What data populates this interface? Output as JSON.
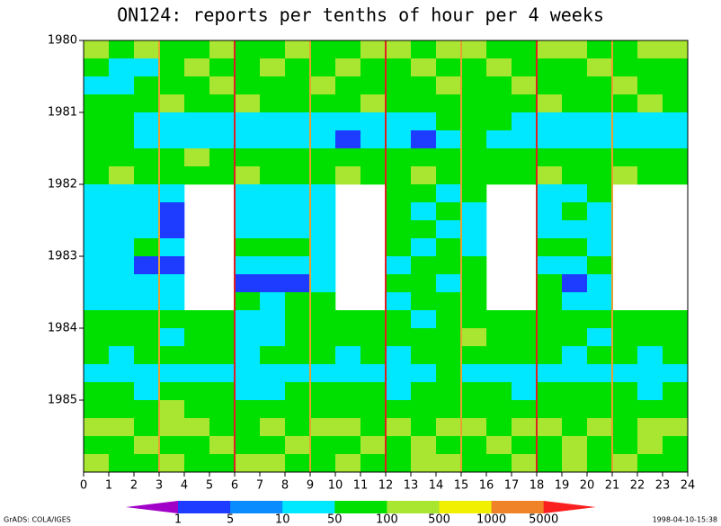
{
  "chart_data": {
    "type": "heatmap",
    "title": "ON124: reports per tenths of hour per 4 weeks",
    "footer_left": "GrADS: COLA/IGES",
    "footer_right": "1998-04-10-15:38",
    "xlim": [
      0,
      24
    ],
    "xticks": [
      0,
      1,
      2,
      3,
      4,
      5,
      6,
      7,
      8,
      9,
      10,
      11,
      12,
      13,
      14,
      15,
      16,
      17,
      18,
      19,
      20,
      21,
      22,
      23,
      24
    ],
    "ylim": [
      1980,
      1986
    ],
    "yticks": [
      1980,
      1981,
      1982,
      1983,
      1984,
      1985
    ],
    "x": [
      0,
      1,
      2,
      3,
      4,
      5,
      6,
      7,
      8,
      9,
      10,
      11,
      12,
      13,
      14,
      15,
      16,
      17,
      18,
      19,
      20,
      21,
      22,
      23
    ],
    "y": [
      1980,
      1980.25,
      1980.5,
      1980.75,
      1981,
      1981.25,
      1981.5,
      1981.75,
      1982,
      1982.25,
      1982.5,
      1982.75,
      1983,
      1983.25,
      1983.5,
      1983.75,
      1984,
      1984.25,
      1984.5,
      1984.75,
      1985,
      1985.25,
      1985.5,
      1985.75
    ],
    "z": [
      [
        300,
        75,
        300,
        75,
        75,
        300,
        75,
        75,
        300,
        75,
        75,
        300,
        300,
        75,
        300,
        300,
        75,
        75,
        300,
        300,
        75,
        75,
        300,
        300
      ],
      [
        75,
        30,
        30,
        75,
        300,
        75,
        75,
        300,
        75,
        75,
        300,
        75,
        75,
        300,
        75,
        75,
        300,
        75,
        75,
        75,
        300,
        75,
        75,
        75
      ],
      [
        30,
        30,
        75,
        75,
        75,
        300,
        75,
        75,
        75,
        300,
        75,
        75,
        75,
        75,
        300,
        75,
        75,
        300,
        75,
        75,
        75,
        300,
        75,
        75
      ],
      [
        75,
        75,
        75,
        300,
        75,
        75,
        300,
        75,
        75,
        75,
        75,
        300,
        75,
        75,
        75,
        75,
        75,
        75,
        300,
        75,
        75,
        75,
        300,
        75
      ],
      [
        75,
        75,
        30,
        30,
        30,
        30,
        30,
        30,
        30,
        30,
        30,
        30,
        30,
        30,
        75,
        75,
        75,
        30,
        30,
        30,
        30,
        30,
        30,
        30
      ],
      [
        75,
        75,
        30,
        30,
        30,
        30,
        30,
        30,
        30,
        30,
        3,
        30,
        30,
        3,
        30,
        75,
        30,
        30,
        30,
        30,
        30,
        30,
        30,
        30
      ],
      [
        75,
        75,
        75,
        75,
        300,
        75,
        75,
        75,
        75,
        75,
        75,
        75,
        75,
        75,
        75,
        75,
        75,
        75,
        75,
        75,
        75,
        75,
        75,
        75
      ],
      [
        75,
        300,
        75,
        75,
        75,
        75,
        300,
        75,
        75,
        75,
        300,
        75,
        75,
        300,
        75,
        75,
        75,
        75,
        300,
        75,
        75,
        300,
        75,
        75
      ],
      [
        30,
        30,
        30,
        30,
        null,
        null,
        30,
        30,
        30,
        30,
        null,
        null,
        75,
        75,
        30,
        75,
        null,
        null,
        30,
        30,
        75,
        null,
        null,
        null
      ],
      [
        30,
        30,
        30,
        3,
        null,
        null,
        30,
        30,
        30,
        30,
        null,
        null,
        75,
        30,
        75,
        30,
        null,
        null,
        30,
        75,
        30,
        null,
        null,
        null
      ],
      [
        30,
        30,
        30,
        3,
        null,
        null,
        30,
        30,
        30,
        30,
        null,
        null,
        75,
        75,
        30,
        30,
        null,
        null,
        30,
        30,
        30,
        null,
        null,
        null
      ],
      [
        30,
        30,
        75,
        30,
        null,
        null,
        75,
        75,
        75,
        30,
        null,
        null,
        75,
        30,
        75,
        30,
        null,
        null,
        75,
        75,
        30,
        null,
        null,
        null
      ],
      [
        30,
        30,
        3,
        3,
        null,
        null,
        30,
        30,
        30,
        30,
        null,
        null,
        30,
        75,
        75,
        75,
        null,
        null,
        30,
        30,
        75,
        null,
        null,
        null
      ],
      [
        30,
        30,
        30,
        30,
        null,
        null,
        3,
        3,
        3,
        30,
        null,
        null,
        75,
        75,
        30,
        75,
        null,
        null,
        75,
        3,
        30,
        null,
        null,
        null
      ],
      [
        30,
        30,
        30,
        30,
        null,
        null,
        75,
        30,
        75,
        75,
        null,
        null,
        30,
        75,
        75,
        75,
        null,
        null,
        75,
        30,
        30,
        null,
        null,
        null
      ],
      [
        75,
        75,
        75,
        75,
        75,
        75,
        30,
        30,
        75,
        75,
        75,
        75,
        75,
        30,
        75,
        75,
        75,
        75,
        75,
        75,
        75,
        75,
        75,
        75
      ],
      [
        75,
        75,
        75,
        30,
        75,
        75,
        30,
        30,
        75,
        75,
        75,
        75,
        75,
        75,
        75,
        300,
        75,
        75,
        75,
        75,
        30,
        75,
        75,
        75
      ],
      [
        75,
        30,
        75,
        75,
        75,
        75,
        30,
        75,
        75,
        75,
        30,
        75,
        30,
        75,
        75,
        75,
        75,
        75,
        75,
        30,
        75,
        75,
        30,
        75
      ],
      [
        30,
        30,
        30,
        30,
        30,
        30,
        30,
        30,
        30,
        30,
        30,
        30,
        30,
        30,
        75,
        30,
        30,
        30,
        30,
        30,
        30,
        30,
        30,
        30
      ],
      [
        75,
        75,
        30,
        75,
        75,
        75,
        30,
        30,
        75,
        75,
        75,
        75,
        30,
        75,
        75,
        75,
        75,
        30,
        75,
        75,
        75,
        75,
        30,
        75
      ],
      [
        75,
        75,
        75,
        300,
        75,
        75,
        75,
        75,
        75,
        75,
        75,
        75,
        75,
        75,
        75,
        75,
        75,
        75,
        75,
        75,
        75,
        75,
        75,
        75
      ],
      [
        300,
        300,
        75,
        300,
        300,
        75,
        75,
        300,
        75,
        300,
        300,
        75,
        300,
        75,
        300,
        300,
        75,
        300,
        300,
        75,
        300,
        75,
        300,
        300
      ],
      [
        75,
        75,
        300,
        75,
        75,
        300,
        75,
        75,
        300,
        75,
        75,
        300,
        75,
        300,
        75,
        75,
        300,
        75,
        75,
        300,
        75,
        75,
        300,
        75
      ],
      [
        300,
        75,
        75,
        300,
        75,
        75,
        300,
        300,
        75,
        75,
        300,
        75,
        75,
        300,
        300,
        75,
        75,
        300,
        75,
        300,
        75,
        300,
        75,
        75
      ]
    ],
    "vlines": [
      {
        "x": 3,
        "color": "#e8a030"
      },
      {
        "x": 6,
        "color": "#e02020"
      },
      {
        "x": 9,
        "color": "#e8a030"
      },
      {
        "x": 12,
        "color": "#e02020"
      },
      {
        "x": 15,
        "color": "#e8a030"
      },
      {
        "x": 18,
        "color": "#e02020"
      },
      {
        "x": 21,
        "color": "#e8a030"
      }
    ],
    "colorbar": {
      "levels": [
        1,
        5,
        10,
        50,
        100,
        500,
        1000,
        5000
      ],
      "colors": [
        "#a000c8",
        "#1e3cff",
        "#0a8cff",
        "#00e8ff",
        "#00e000",
        "#a8e632",
        "#f0f000",
        "#f08228",
        "#fa2020"
      ]
    }
  }
}
